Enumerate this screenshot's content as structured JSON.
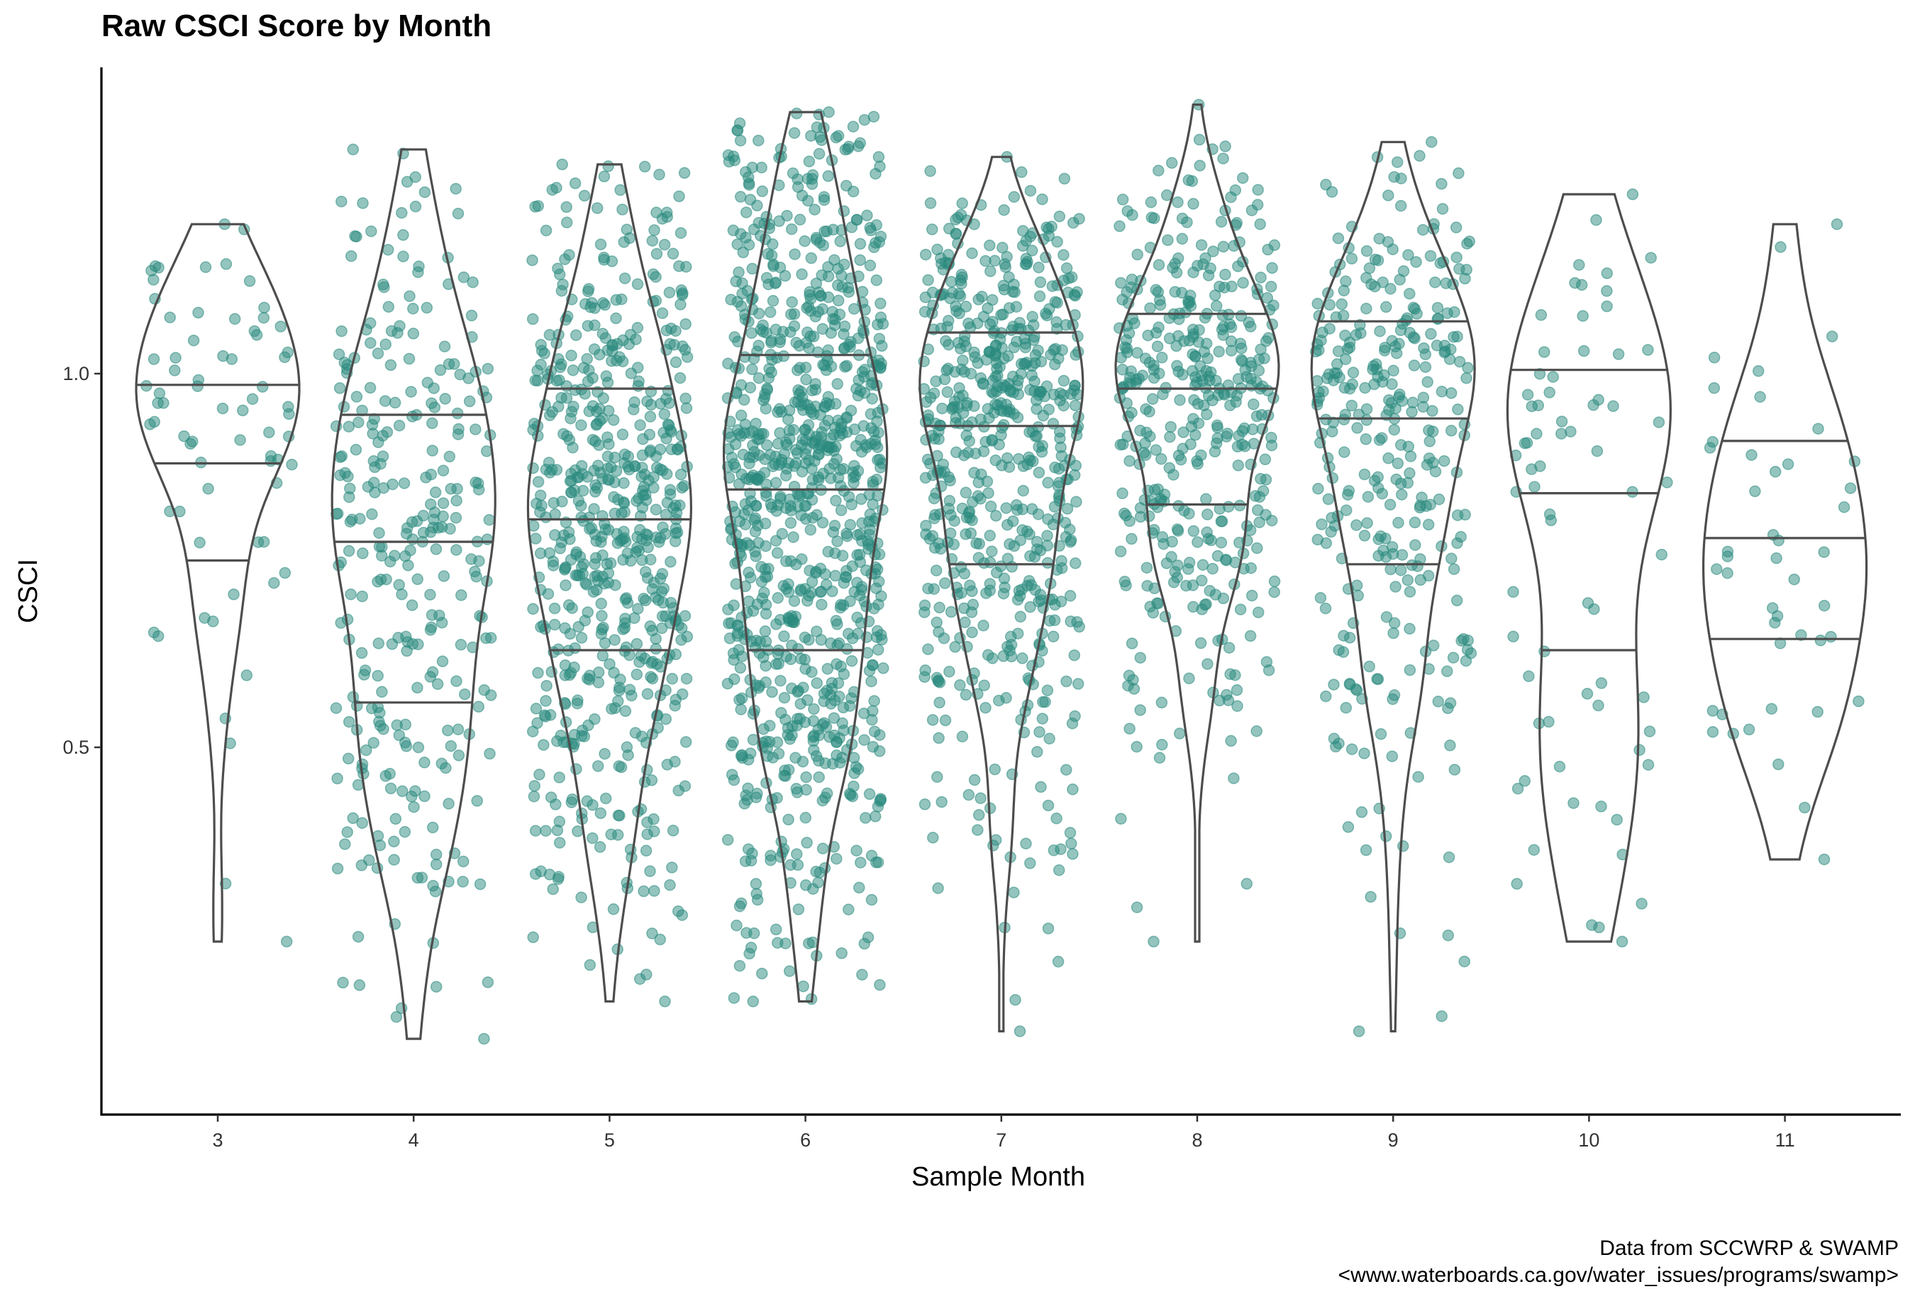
{
  "chart_data": {
    "type": "scatter",
    "subtype": "violin-with-jittered-points",
    "title": "Raw CSCI Score by Month",
    "xlabel": "Sample Month",
    "ylabel": "CSCI",
    "caption": [
      "Data from SCCWRP & SWAMP",
      "<www.waterboards.ca.gov/water_issues/programs/swamp>"
    ],
    "x_ticks": [
      "3",
      "4",
      "5",
      "6",
      "7",
      "8",
      "9",
      "10",
      "11"
    ],
    "y_ticks": [
      0.5,
      1.0
    ],
    "y_tick_labels": [
      "0.5",
      "1.0"
    ],
    "ylim": [
      0.005,
      1.365
    ],
    "grid": false,
    "point_color": "#2a8a7d",
    "violin_color": "#4d4d4d",
    "groups": [
      {
        "month": "3",
        "n": 70,
        "min": 0.24,
        "max": 1.2,
        "q1": 0.75,
        "median": 0.88,
        "q3": 0.985
      },
      {
        "month": "4",
        "n": 300,
        "min": 0.11,
        "max": 1.3,
        "q1": 0.56,
        "median": 0.775,
        "q3": 0.945
      },
      {
        "month": "5",
        "n": 620,
        "min": 0.16,
        "max": 1.28,
        "q1": 0.63,
        "median": 0.805,
        "q3": 0.98
      },
      {
        "month": "6",
        "n": 950,
        "min": 0.16,
        "max": 1.35,
        "q1": 0.63,
        "median": 0.845,
        "q3": 1.025
      },
      {
        "month": "7",
        "n": 610,
        "min": 0.12,
        "max": 1.29,
        "q1": 0.745,
        "median": 0.93,
        "q3": 1.055
      },
      {
        "month": "8",
        "n": 420,
        "min": 0.24,
        "max": 1.36,
        "q1": 0.825,
        "median": 0.98,
        "q3": 1.08
      },
      {
        "month": "9",
        "n": 330,
        "min": 0.12,
        "max": 1.31,
        "q1": 0.745,
        "median": 0.94,
        "q3": 1.07
      },
      {
        "month": "10",
        "n": 70,
        "min": 0.24,
        "max": 1.24,
        "q1": 0.63,
        "median": 0.84,
        "q3": 1.005
      },
      {
        "month": "11",
        "n": 45,
        "min": 0.35,
        "max": 1.2,
        "q1": 0.645,
        "median": 0.78,
        "q3": 0.91
      }
    ]
  }
}
